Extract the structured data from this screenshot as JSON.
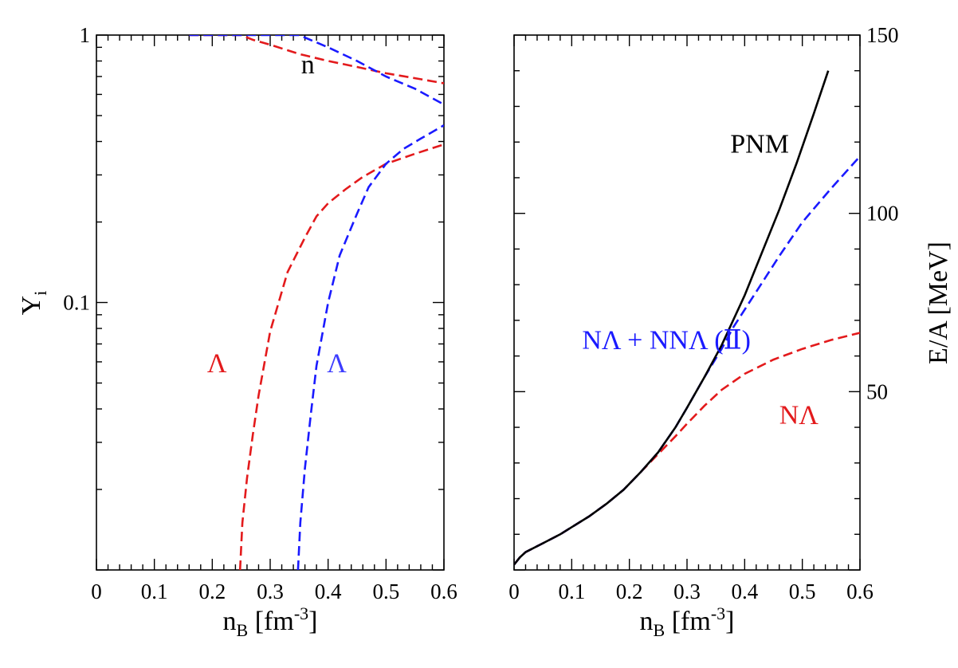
{
  "chart_data": [
    {
      "type": "line",
      "panel": "left",
      "xlabel_base": "n",
      "xlabel_sub": "B",
      "xlabel_rest": " [fm",
      "xlabel_sup": "-3",
      "xlabel_end": "]",
      "ylabel_base": "Y",
      "ylabel_sub": "i",
      "xlim": [
        0,
        0.6
      ],
      "ylim": [
        0.01,
        1
      ],
      "yscale": "log",
      "xticks": [
        "0",
        "0.1",
        "0.2",
        "0.3",
        "0.4",
        "0.5",
        "0.6"
      ],
      "yticks": [
        {
          "label": "1",
          "value": 1
        },
        {
          "label": "0.1",
          "value": 0.1
        }
      ],
      "series": [
        {
          "name": "n",
          "model": "NΛ",
          "color": "#e31a1c",
          "dash": true,
          "x": [
            0.16,
            0.25,
            0.27,
            0.3,
            0.35,
            0.4,
            0.45,
            0.5,
            0.55,
            0.6
          ],
          "y": [
            1.0,
            1.0,
            0.96,
            0.92,
            0.85,
            0.8,
            0.76,
            0.72,
            0.69,
            0.66
          ]
        },
        {
          "name": "n",
          "model": "NΛ + NNΛ (Ⅱ)",
          "color": "#1a1aff",
          "dash": true,
          "x": [
            0.16,
            0.35,
            0.4,
            0.45,
            0.5,
            0.55,
            0.6
          ],
          "y": [
            1.0,
            1.0,
            0.9,
            0.8,
            0.7,
            0.63,
            0.55
          ]
        },
        {
          "name": "Λ",
          "model": "NΛ",
          "color": "#e31a1c",
          "dash": true,
          "x": [
            0.248,
            0.252,
            0.26,
            0.27,
            0.28,
            0.3,
            0.33,
            0.36,
            0.38,
            0.4,
            0.43,
            0.46,
            0.5,
            0.55,
            0.6
          ],
          "y": [
            0.01,
            0.015,
            0.022,
            0.032,
            0.045,
            0.078,
            0.13,
            0.175,
            0.21,
            0.235,
            0.265,
            0.295,
            0.33,
            0.36,
            0.39
          ]
        },
        {
          "name": "Λ",
          "model": "NΛ + NNΛ (Ⅱ)",
          "color": "#1a1aff",
          "dash": true,
          "x": [
            0.348,
            0.352,
            0.36,
            0.37,
            0.38,
            0.4,
            0.42,
            0.45,
            0.47,
            0.5,
            0.53,
            0.56,
            0.6
          ],
          "y": [
            0.01,
            0.015,
            0.024,
            0.038,
            0.058,
            0.1,
            0.15,
            0.215,
            0.27,
            0.33,
            0.375,
            0.41,
            0.46
          ]
        }
      ],
      "annotations": [
        {
          "text": "n",
          "color": "#000000",
          "x": 0.365,
          "y": 0.72
        },
        {
          "text": "Λ",
          "color": "#e31a1c",
          "x": 0.208,
          "y": 0.055
        },
        {
          "text": "Λ",
          "color": "#3d3dff",
          "x": 0.415,
          "y": 0.055
        }
      ]
    },
    {
      "type": "line",
      "panel": "right",
      "xlabel_base": "n",
      "xlabel_sub": "B",
      "xlabel_rest": " [fm",
      "xlabel_sup": "-3",
      "xlabel_end": "]",
      "ylabel": "E/A [MeV]",
      "xlim": [
        0,
        0.6
      ],
      "ylim": [
        0,
        150
      ],
      "xticks": [
        "0",
        "0.1",
        "0.2",
        "0.3",
        "0.4",
        "0.5",
        "0.6"
      ],
      "yticks": [
        {
          "label": "50",
          "value": 50
        },
        {
          "label": "100",
          "value": 100
        },
        {
          "label": "150",
          "value": 150
        }
      ],
      "series": [
        {
          "name": "PNM",
          "color": "#000000",
          "dash": false,
          "x": [
            0.0,
            0.01,
            0.02,
            0.05,
            0.08,
            0.1,
            0.13,
            0.16,
            0.19,
            0.22,
            0.25,
            0.28,
            0.3,
            0.33,
            0.36,
            0.4,
            0.43,
            0.46,
            0.49,
            0.52,
            0.545
          ],
          "y": [
            1.5,
            3.5,
            5.0,
            7.5,
            10.0,
            12.0,
            15.0,
            18.5,
            22.5,
            27.5,
            33.0,
            40.0,
            45.5,
            54.0,
            63.0,
            77.0,
            89.0,
            101.0,
            114.0,
            128.0,
            140.0
          ]
        },
        {
          "name": "NΛ + NNΛ (Ⅱ)",
          "color": "#1a1aff",
          "dash": true,
          "x": [
            0.0,
            0.01,
            0.02,
            0.05,
            0.08,
            0.1,
            0.13,
            0.16,
            0.19,
            0.22,
            0.25,
            0.28,
            0.3,
            0.33,
            0.36,
            0.38,
            0.42,
            0.46,
            0.5,
            0.55,
            0.6
          ],
          "y": [
            1.5,
            3.5,
            5.0,
            7.5,
            10.0,
            12.0,
            15.0,
            18.5,
            22.5,
            27.5,
            33.0,
            40.0,
            45.5,
            54.0,
            62.0,
            68.0,
            78.0,
            88.0,
            97.5,
            107.0,
            116.0
          ]
        },
        {
          "name": "NΛ",
          "color": "#e31a1c",
          "dash": true,
          "x": [
            0.0,
            0.01,
            0.02,
            0.05,
            0.08,
            0.1,
            0.13,
            0.16,
            0.19,
            0.22,
            0.25,
            0.28,
            0.3,
            0.33,
            0.36,
            0.4,
            0.45,
            0.5,
            0.55,
            0.6
          ],
          "y": [
            1.5,
            3.5,
            5.0,
            7.5,
            10.0,
            12.0,
            15.0,
            18.5,
            22.5,
            27.5,
            32.5,
            37.5,
            41.0,
            46.0,
            50.5,
            55.0,
            59.0,
            62.0,
            64.5,
            66.5
          ]
        }
      ],
      "annotations": [
        {
          "text": "PNM",
          "color": "#000000",
          "x": 0.375,
          "y": 117
        },
        {
          "text": "NΛ + NNΛ (Ⅱ)",
          "color": "#1a1aff",
          "x": 0.118,
          "y": 62
        },
        {
          "text": "NΛ",
          "color": "#e31a1c",
          "x": 0.46,
          "y": 41
        }
      ]
    }
  ]
}
